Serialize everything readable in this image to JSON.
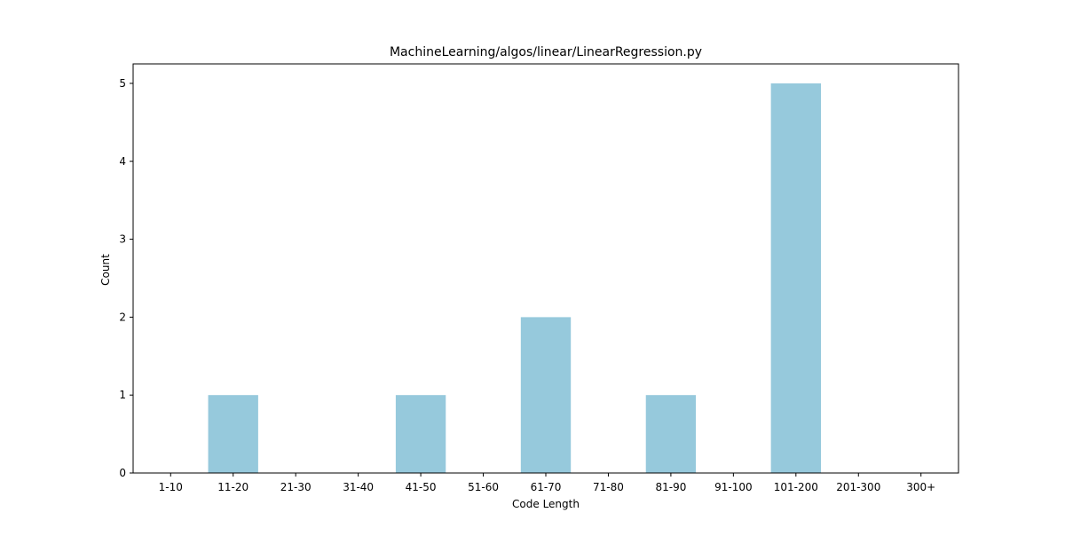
{
  "chart_data": {
    "type": "bar",
    "title": "MachineLearning/algos/linear/LinearRegression.py",
    "xlabel": "Code Length",
    "ylabel": "Count",
    "categories": [
      "1-10",
      "11-20",
      "21-30",
      "31-40",
      "41-50",
      "51-60",
      "61-70",
      "71-80",
      "81-90",
      "91-100",
      "101-200",
      "201-300",
      "300+"
    ],
    "values": [
      0,
      1,
      0,
      0,
      1,
      0,
      2,
      0,
      1,
      0,
      5,
      0,
      0
    ],
    "ylim": [
      0,
      5.25
    ],
    "yticks": [
      0,
      1,
      2,
      3,
      4,
      5
    ],
    "bar_color": "#96c9dc",
    "grid": false,
    "legend": "none"
  }
}
